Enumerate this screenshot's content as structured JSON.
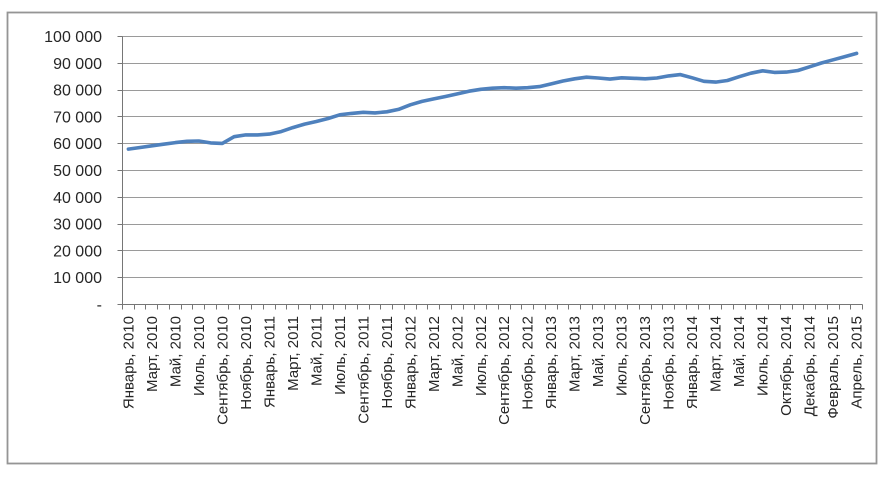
{
  "chart_data": {
    "type": "line",
    "title": "",
    "xlabel": "",
    "ylabel": "",
    "legend": false,
    "grid": true,
    "ylim": [
      0,
      100000
    ],
    "y_tick_step": 10000,
    "y_tick_labels_top_to_bottom": [
      "100 000",
      "90 000",
      "80 000",
      "70 000",
      "60 000",
      "50 000",
      "40 000",
      "30 000",
      "20 000",
      "10 000",
      "-"
    ],
    "categories": [
      "Январь, 2010",
      "Март, 2010",
      "Май, 2010",
      "Июль, 2010",
      "Сентябрь, 2010",
      "Ноябрь, 2010",
      "Январь, 2011",
      "Март, 2011",
      "Май, 2011",
      "Июль, 2011",
      "Сентябрь, 2011",
      "Ноябрь, 2011",
      "Январь, 2012",
      "Март, 2012",
      "Май, 2012",
      "Июль, 2012",
      "Сентябрь, 2012",
      "Ноябрь, 2012",
      "Январь, 2013",
      "Март, 2013",
      "Май, 2013",
      "Июль, 2013",
      "Сентябрь, 2013",
      "Ноябрь, 2013",
      "Январь, 2014",
      "Март, 2014",
      "Май, 2014",
      "Июль, 2014",
      "Октябрь, 2014",
      "Декабрь, 2014",
      "Февраль, 2015",
      "Апрель, 2015"
    ],
    "points_per_category_interval": 2,
    "values": [
      58000,
      58600,
      59200,
      59800,
      60400,
      60900,
      61000,
      60300,
      60100,
      62600,
      63300,
      63300,
      63600,
      64500,
      66000,
      67300,
      68300,
      69400,
      70800,
      71300,
      71700,
      71500,
      71900,
      72800,
      74500,
      75800,
      76700,
      77600,
      78600,
      79600,
      80300,
      80700,
      80900,
      80700,
      80900,
      81300,
      82300,
      83400,
      84200,
      84800,
      84500,
      84100,
      84600,
      84400,
      84200,
      84500,
      85300,
      85800,
      84600,
      83300,
      83000,
      83600,
      85000,
      86300,
      87200,
      86600,
      86700,
      87300,
      88700,
      90100,
      91300,
      92500,
      93700
    ],
    "colors": {
      "line": "#4f81bd",
      "grid": "#9a9a9a",
      "axis": "#767676",
      "text": "#262626",
      "border": "#959595",
      "background": "#ffffff"
    }
  }
}
